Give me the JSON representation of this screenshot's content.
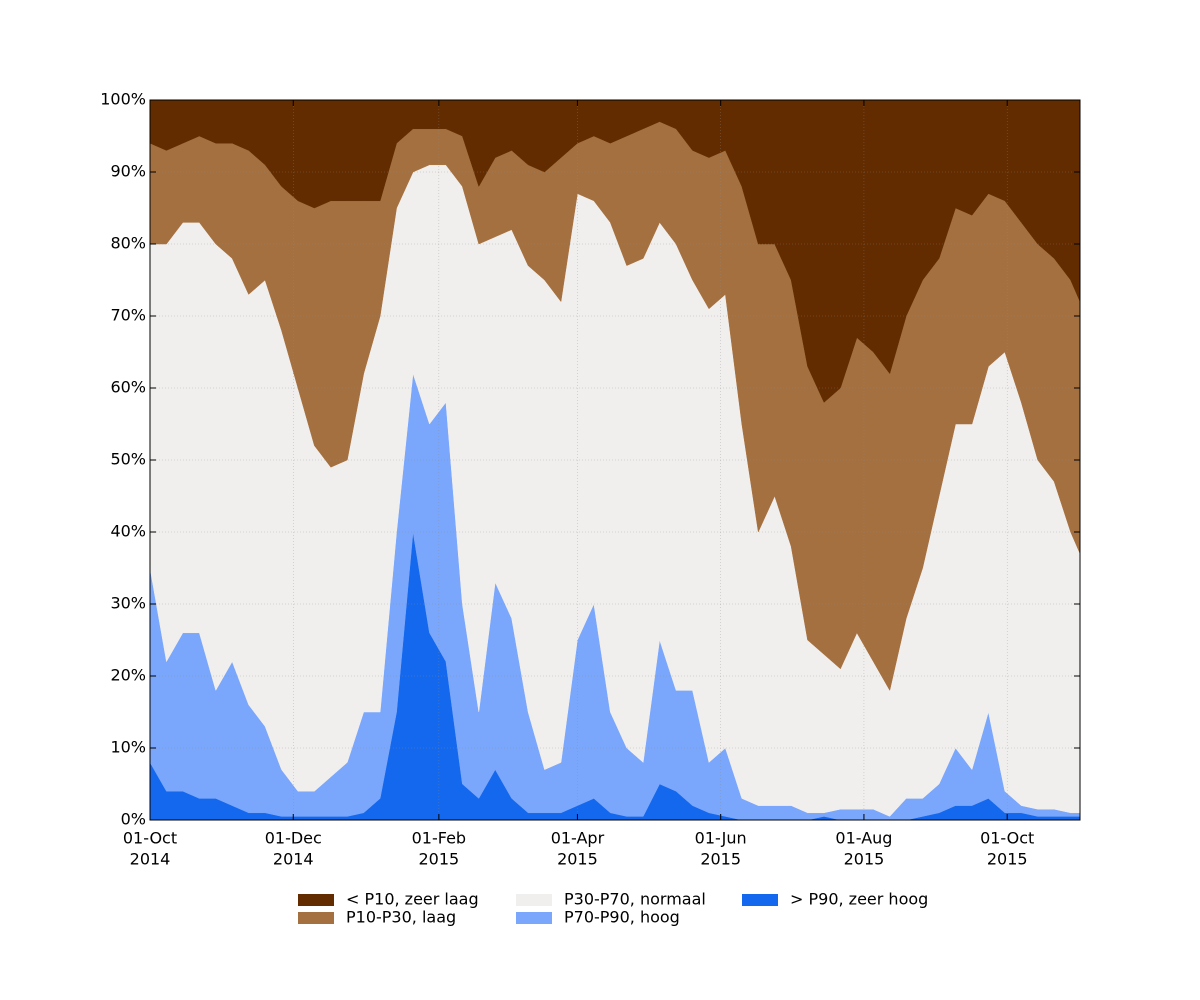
{
  "chart_data": {
    "type": "stacked_area",
    "x": [
      "2014-10-01",
      "2014-10-08",
      "2014-10-15",
      "2014-10-22",
      "2014-10-29",
      "2014-11-05",
      "2014-11-12",
      "2014-11-19",
      "2014-11-26",
      "2014-12-03",
      "2014-12-10",
      "2014-12-17",
      "2014-12-24",
      "2014-12-31",
      "2015-01-07",
      "2015-01-14",
      "2015-01-21",
      "2015-01-28",
      "2015-02-04",
      "2015-02-11",
      "2015-02-18",
      "2015-02-25",
      "2015-03-04",
      "2015-03-11",
      "2015-03-18",
      "2015-03-25",
      "2015-04-01",
      "2015-04-08",
      "2015-04-15",
      "2015-04-22",
      "2015-04-29",
      "2015-05-06",
      "2015-05-13",
      "2015-05-20",
      "2015-05-27",
      "2015-06-03",
      "2015-06-10",
      "2015-06-17",
      "2015-06-24",
      "2015-07-01",
      "2015-07-08",
      "2015-07-15",
      "2015-07-22",
      "2015-07-29",
      "2015-08-05",
      "2015-08-12",
      "2015-08-19",
      "2015-08-26",
      "2015-09-02",
      "2015-09-09",
      "2015-09-16",
      "2015-09-23",
      "2015-09-30",
      "2015-10-07",
      "2015-10-14",
      "2015-10-21",
      "2015-10-28",
      "2015-11-01"
    ],
    "series": [
      {
        "name": "< P10, zeer laag",
        "color": "#622c00",
        "values": [
          6,
          7,
          6,
          5,
          6,
          6,
          7,
          9,
          12,
          14,
          15,
          14,
          14,
          14,
          14,
          6,
          4,
          4,
          4,
          5,
          12,
          8,
          7,
          9,
          10,
          8,
          6,
          5,
          6,
          5,
          4,
          3,
          4,
          7,
          8,
          7,
          12,
          20,
          20,
          25,
          37,
          42,
          40,
          33,
          35,
          38,
          30,
          25,
          22,
          15,
          16,
          13,
          14,
          17,
          20,
          22,
          25,
          28
        ]
      },
      {
        "name": "P10-P30, laag",
        "color": "#a5703f",
        "values": [
          14,
          13,
          11,
          12,
          14,
          16,
          20,
          16,
          20,
          26,
          33,
          37,
          36,
          24,
          16,
          9,
          6,
          5,
          5,
          7,
          8,
          11,
          11,
          14,
          15,
          20,
          7,
          9,
          11,
          18,
          18,
          14,
          16,
          18,
          21,
          20,
          33,
          40,
          35,
          37,
          38,
          35,
          39,
          41,
          43,
          44,
          42,
          40,
          33,
          30,
          29,
          24,
          21,
          25,
          30,
          31,
          35,
          35
        ]
      },
      {
        "name": "P30-P70, normaal",
        "color": "#f1efee",
        "values": [
          45,
          58,
          57,
          57,
          62,
          56,
          57,
          62,
          61,
          56,
          48,
          43,
          42,
          47,
          55,
          45,
          28,
          36,
          33,
          58,
          65,
          48,
          54,
          62,
          68,
          64,
          62,
          56,
          68,
          67,
          70,
          58,
          62,
          57,
          63,
          63,
          52,
          38,
          43,
          36,
          24,
          22,
          19.5,
          24.5,
          20.5,
          17.5,
          25,
          32,
          40,
          45,
          48,
          48,
          61,
          56,
          48.5,
          45.5,
          39,
          36
        ]
      },
      {
        "name": "P70-P90, hoog",
        "color": "#7aa7fb",
        "values": [
          27,
          18,
          22,
          23,
          15,
          20,
          15,
          12,
          6.5,
          3.5,
          3.5,
          5.5,
          7.5,
          14,
          12,
          25,
          22,
          29,
          36,
          25,
          12,
          26,
          25,
          14,
          6,
          7,
          23,
          27,
          14,
          9.5,
          7.5,
          20,
          14,
          16,
          7,
          9.5,
          3,
          2,
          2,
          2,
          1,
          0.5,
          1.5,
          1.5,
          1.5,
          0.5,
          3,
          2.5,
          4,
          8,
          5,
          12,
          3,
          1,
          1,
          1,
          0.5,
          0.5
        ]
      },
      {
        "name": "> P90, zeer hoog",
        "color": "#1468ee",
        "values": [
          8,
          4,
          4,
          3,
          3,
          2,
          1,
          1,
          0.5,
          0.5,
          0.5,
          0.5,
          0.5,
          1,
          3,
          15,
          40,
          26,
          22,
          5,
          3,
          7,
          3,
          1,
          1,
          1,
          2,
          3,
          1,
          0.5,
          0.5,
          5,
          4,
          2,
          1,
          0.5,
          0,
          0,
          0,
          0,
          0,
          0.5,
          0,
          0,
          0,
          0,
          0,
          0.5,
          1,
          2,
          2,
          3,
          1,
          1,
          0.5,
          0.5,
          0.5,
          0.5
        ]
      }
    ],
    "xlim": [
      "2014-10-01",
      "2015-11-01"
    ],
    "xticks": [
      {
        "value": "2014-10-01",
        "label": [
          "01-Oct",
          "2014"
        ]
      },
      {
        "value": "2014-12-01",
        "label": [
          "01-Dec",
          "2014"
        ]
      },
      {
        "value": "2015-02-01",
        "label": [
          "01-Feb",
          "2015"
        ]
      },
      {
        "value": "2015-04-01",
        "label": [
          "01-Apr",
          "2015"
        ]
      },
      {
        "value": "2015-06-01",
        "label": [
          "01-Jun",
          "2015"
        ]
      },
      {
        "value": "2015-08-01",
        "label": [
          "01-Aug",
          "2015"
        ]
      },
      {
        "value": "2015-10-01",
        "label": [
          "01-Oct",
          "2015"
        ]
      }
    ],
    "ylim": [
      0,
      100
    ],
    "yticks": [
      {
        "value": 0,
        "label": "0%"
      },
      {
        "value": 10,
        "label": "10%"
      },
      {
        "value": 20,
        "label": "20%"
      },
      {
        "value": 30,
        "label": "30%"
      },
      {
        "value": 40,
        "label": "40%"
      },
      {
        "value": 50,
        "label": "50%"
      },
      {
        "value": 60,
        "label": "60%"
      },
      {
        "value": 70,
        "label": "70%"
      },
      {
        "value": 80,
        "label": "80%"
      },
      {
        "value": 90,
        "label": "90%"
      },
      {
        "value": 100,
        "label": "100%"
      }
    ],
    "grid": true,
    "legend": "bottom"
  }
}
